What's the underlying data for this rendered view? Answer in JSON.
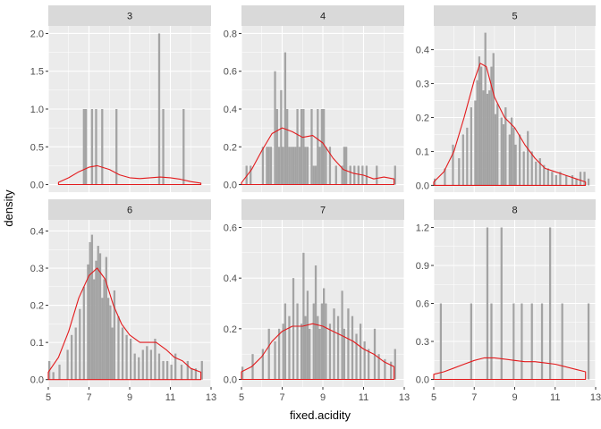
{
  "chart_data": {
    "type": "histogram-facet",
    "xlabel": "fixed.acidity",
    "ylabel": "density",
    "xlim": [
      5,
      13
    ],
    "x_ticks": [
      5,
      7,
      9,
      11,
      13
    ],
    "bar_color": "#A3A3A3",
    "density_color": "#E31A1C",
    "panel_bg": "#EBEBEB",
    "strip_bg": "#D9D9D9",
    "panels": [
      {
        "label": "3",
        "ylim": [
          -0.1,
          2.1
        ],
        "y_ticks": [
          0.0,
          0.5,
          1.0,
          1.5,
          2.0
        ],
        "y_tick_labels": [
          "0.0",
          "0.5",
          "1.0",
          "1.5",
          "2.0"
        ],
        "bars": [
          [
            6.7,
            1.0
          ],
          [
            6.8,
            1.0
          ],
          [
            7.1,
            1.0
          ],
          [
            7.3,
            1.0
          ],
          [
            7.6,
            1.0
          ],
          [
            8.3,
            1.0
          ],
          [
            10.4,
            2.0
          ],
          [
            10.6,
            1.0
          ],
          [
            11.6,
            1.0
          ]
        ],
        "density": [
          [
            5.5,
            0.03
          ],
          [
            6.0,
            0.09
          ],
          [
            6.5,
            0.17
          ],
          [
            7.0,
            0.23
          ],
          [
            7.4,
            0.25
          ],
          [
            8.0,
            0.2
          ],
          [
            8.5,
            0.13
          ],
          [
            9.0,
            0.09
          ],
          [
            9.5,
            0.08
          ],
          [
            10.0,
            0.09
          ],
          [
            10.5,
            0.1
          ],
          [
            11.0,
            0.09
          ],
          [
            11.5,
            0.07
          ],
          [
            12.0,
            0.04
          ],
          [
            12.5,
            0.02
          ]
        ]
      },
      {
        "label": "4",
        "ylim": [
          -0.04,
          0.84
        ],
        "y_ticks": [
          0.0,
          0.2,
          0.4,
          0.6,
          0.8
        ],
        "y_tick_labels": [
          "0.0",
          "0.2",
          "0.4",
          "0.6",
          "0.8"
        ],
        "bars": [
          [
            5.2,
            0.1
          ],
          [
            5.4,
            0.1
          ],
          [
            6.0,
            0.2
          ],
          [
            6.2,
            0.2
          ],
          [
            6.3,
            0.2
          ],
          [
            6.4,
            0.2
          ],
          [
            6.6,
            0.6
          ],
          [
            6.7,
            0.4
          ],
          [
            6.8,
            0.2
          ],
          [
            6.9,
            0.5
          ],
          [
            7.0,
            0.2
          ],
          [
            7.1,
            0.7
          ],
          [
            7.2,
            0.4
          ],
          [
            7.3,
            0.2
          ],
          [
            7.4,
            0.2
          ],
          [
            7.5,
            0.2
          ],
          [
            7.6,
            0.2
          ],
          [
            7.7,
            0.4
          ],
          [
            7.8,
            0.2
          ],
          [
            7.9,
            0.4
          ],
          [
            8.0,
            0.4
          ],
          [
            8.1,
            0.2
          ],
          [
            8.2,
            0.2
          ],
          [
            8.4,
            0.4
          ],
          [
            8.5,
            0.1
          ],
          [
            8.6,
            0.1
          ],
          [
            8.7,
            0.4
          ],
          [
            8.8,
            0.2
          ],
          [
            8.9,
            0.4
          ],
          [
            9.0,
            0.4
          ],
          [
            9.1,
            0.2
          ],
          [
            9.3,
            0.2
          ],
          [
            9.6,
            0.1
          ],
          [
            9.9,
            0.1
          ],
          [
            10.0,
            0.2
          ],
          [
            10.1,
            0.2
          ],
          [
            10.3,
            0.1
          ],
          [
            10.5,
            0.1
          ],
          [
            10.7,
            0.1
          ],
          [
            10.9,
            0.1
          ],
          [
            11.1,
            0.1
          ],
          [
            11.6,
            0.1
          ],
          [
            12.5,
            0.1
          ]
        ],
        "density": [
          [
            5.0,
            0.01
          ],
          [
            5.5,
            0.08
          ],
          [
            6.0,
            0.18
          ],
          [
            6.5,
            0.27
          ],
          [
            7.0,
            0.3
          ],
          [
            7.5,
            0.28
          ],
          [
            8.0,
            0.25
          ],
          [
            8.5,
            0.26
          ],
          [
            9.0,
            0.22
          ],
          [
            9.5,
            0.14
          ],
          [
            10.0,
            0.08
          ],
          [
            10.5,
            0.06
          ],
          [
            11.0,
            0.05
          ],
          [
            11.5,
            0.03
          ],
          [
            12.0,
            0.04
          ],
          [
            12.5,
            0.03
          ]
        ]
      },
      {
        "label": "5",
        "ylim": [
          -0.02,
          0.47
        ],
        "y_ticks": [
          0.0,
          0.1,
          0.2,
          0.3,
          0.4
        ],
        "y_tick_labels": [
          "0.0",
          "0.1",
          "0.2",
          "0.3",
          "0.4"
        ],
        "bars": [
          [
            5.0,
            0.02
          ],
          [
            5.5,
            0.05
          ],
          [
            5.9,
            0.12
          ],
          [
            6.2,
            0.08
          ],
          [
            6.4,
            0.15
          ],
          [
            6.6,
            0.17
          ],
          [
            6.8,
            0.23
          ],
          [
            7.0,
            0.25
          ],
          [
            7.1,
            0.31
          ],
          [
            7.2,
            0.38
          ],
          [
            7.3,
            0.35
          ],
          [
            7.4,
            0.28
          ],
          [
            7.5,
            0.45
          ],
          [
            7.6,
            0.27
          ],
          [
            7.7,
            0.28
          ],
          [
            7.8,
            0.35
          ],
          [
            7.9,
            0.39
          ],
          [
            8.0,
            0.21
          ],
          [
            8.1,
            0.24
          ],
          [
            8.3,
            0.2
          ],
          [
            8.4,
            0.18
          ],
          [
            8.5,
            0.23
          ],
          [
            8.7,
            0.15
          ],
          [
            8.8,
            0.2
          ],
          [
            8.9,
            0.17
          ],
          [
            9.0,
            0.12
          ],
          [
            9.2,
            0.15
          ],
          [
            9.4,
            0.1
          ],
          [
            9.6,
            0.16
          ],
          [
            9.8,
            0.1
          ],
          [
            10.0,
            0.07
          ],
          [
            10.2,
            0.08
          ],
          [
            10.4,
            0.06
          ],
          [
            10.6,
            0.05
          ],
          [
            10.8,
            0.04
          ],
          [
            11.0,
            0.03
          ],
          [
            11.2,
            0.04
          ],
          [
            11.5,
            0.03
          ],
          [
            11.8,
            0.03
          ],
          [
            12.0,
            0.02
          ],
          [
            12.2,
            0.04
          ],
          [
            12.4,
            0.04
          ],
          [
            12.6,
            0.02
          ]
        ],
        "density": [
          [
            5.0,
            0.01
          ],
          [
            5.5,
            0.04
          ],
          [
            6.0,
            0.1
          ],
          [
            6.5,
            0.2
          ],
          [
            7.0,
            0.31
          ],
          [
            7.3,
            0.36
          ],
          [
            7.6,
            0.35
          ],
          [
            8.0,
            0.26
          ],
          [
            8.5,
            0.2
          ],
          [
            9.0,
            0.17
          ],
          [
            9.5,
            0.12
          ],
          [
            10.0,
            0.08
          ],
          [
            10.5,
            0.05
          ],
          [
            11.0,
            0.04
          ],
          [
            11.5,
            0.03
          ],
          [
            12.0,
            0.02
          ],
          [
            12.5,
            0.01
          ]
        ]
      },
      {
        "label": "6",
        "ylim": [
          -0.02,
          0.43
        ],
        "y_ticks": [
          0.0,
          0.1,
          0.2,
          0.3,
          0.4
        ],
        "y_tick_labels": [
          "0.0",
          "0.1",
          "0.2",
          "0.3",
          "0.4"
        ],
        "bars": [
          [
            5.0,
            0.05
          ],
          [
            5.2,
            0.02
          ],
          [
            5.5,
            0.04
          ],
          [
            5.9,
            0.08
          ],
          [
            6.1,
            0.12
          ],
          [
            6.3,
            0.14
          ],
          [
            6.5,
            0.19
          ],
          [
            6.7,
            0.25
          ],
          [
            6.9,
            0.31
          ],
          [
            7.0,
            0.37
          ],
          [
            7.1,
            0.39
          ],
          [
            7.2,
            0.27
          ],
          [
            7.3,
            0.32
          ],
          [
            7.4,
            0.36
          ],
          [
            7.5,
            0.34
          ],
          [
            7.6,
            0.22
          ],
          [
            7.7,
            0.27
          ],
          [
            7.8,
            0.33
          ],
          [
            7.9,
            0.22
          ],
          [
            8.0,
            0.2
          ],
          [
            8.1,
            0.14
          ],
          [
            8.2,
            0.24
          ],
          [
            8.4,
            0.17
          ],
          [
            8.6,
            0.14
          ],
          [
            8.8,
            0.12
          ],
          [
            9.0,
            0.11
          ],
          [
            9.2,
            0.07
          ],
          [
            9.4,
            0.06
          ],
          [
            9.6,
            0.08
          ],
          [
            9.8,
            0.09
          ],
          [
            10.0,
            0.08
          ],
          [
            10.2,
            0.11
          ],
          [
            10.4,
            0.07
          ],
          [
            10.6,
            0.05
          ],
          [
            10.8,
            0.05
          ],
          [
            11.0,
            0.04
          ],
          [
            11.2,
            0.07
          ],
          [
            11.5,
            0.04
          ],
          [
            11.8,
            0.05
          ],
          [
            12.0,
            0.03
          ],
          [
            12.2,
            0.03
          ],
          [
            12.5,
            0.05
          ]
        ],
        "density": [
          [
            5.0,
            0.02
          ],
          [
            5.5,
            0.06
          ],
          [
            6.0,
            0.13
          ],
          [
            6.5,
            0.22
          ],
          [
            7.0,
            0.28
          ],
          [
            7.4,
            0.3
          ],
          [
            7.8,
            0.27
          ],
          [
            8.2,
            0.2
          ],
          [
            8.6,
            0.15
          ],
          [
            9.0,
            0.12
          ],
          [
            9.5,
            0.1
          ],
          [
            10.0,
            0.1
          ],
          [
            10.3,
            0.1
          ],
          [
            10.8,
            0.08
          ],
          [
            11.2,
            0.06
          ],
          [
            11.6,
            0.05
          ],
          [
            12.0,
            0.03
          ],
          [
            12.5,
            0.02
          ]
        ]
      },
      {
        "label": "7",
        "ylim": [
          -0.03,
          0.63
        ],
        "y_ticks": [
          0.0,
          0.2,
          0.4,
          0.6
        ],
        "y_tick_labels": [
          "0.0",
          "0.2",
          "0.4",
          "0.6"
        ],
        "bars": [
          [
            5.0,
            0.05
          ],
          [
            5.5,
            0.1
          ],
          [
            6.0,
            0.12
          ],
          [
            6.3,
            0.2
          ],
          [
            6.6,
            0.15
          ],
          [
            6.8,
            0.2
          ],
          [
            7.0,
            0.22
          ],
          [
            7.1,
            0.3
          ],
          [
            7.3,
            0.25
          ],
          [
            7.5,
            0.4
          ],
          [
            7.7,
            0.3
          ],
          [
            7.9,
            0.22
          ],
          [
            8.0,
            0.5
          ],
          [
            8.1,
            0.25
          ],
          [
            8.2,
            0.35
          ],
          [
            8.3,
            0.2
          ],
          [
            8.5,
            0.3
          ],
          [
            8.6,
            0.45
          ],
          [
            8.7,
            0.25
          ],
          [
            8.8,
            0.2
          ],
          [
            8.9,
            0.3
          ],
          [
            9.0,
            0.36
          ],
          [
            9.1,
            0.3
          ],
          [
            9.3,
            0.22
          ],
          [
            9.5,
            0.28
          ],
          [
            9.7,
            0.25
          ],
          [
            9.9,
            0.35
          ],
          [
            10.0,
            0.2
          ],
          [
            10.2,
            0.28
          ],
          [
            10.4,
            0.25
          ],
          [
            10.6,
            0.18
          ],
          [
            10.8,
            0.22
          ],
          [
            11.0,
            0.15
          ],
          [
            11.2,
            0.12
          ],
          [
            11.5,
            0.2
          ],
          [
            11.7,
            0.1
          ],
          [
            12.0,
            0.08
          ],
          [
            12.3,
            0.07
          ],
          [
            12.5,
            0.12
          ]
        ],
        "density": [
          [
            5.0,
            0.03
          ],
          [
            5.5,
            0.05
          ],
          [
            6.0,
            0.09
          ],
          [
            6.5,
            0.15
          ],
          [
            7.0,
            0.19
          ],
          [
            7.5,
            0.21
          ],
          [
            8.0,
            0.21
          ],
          [
            8.5,
            0.22
          ],
          [
            9.0,
            0.21
          ],
          [
            9.5,
            0.19
          ],
          [
            10.0,
            0.17
          ],
          [
            10.5,
            0.15
          ],
          [
            11.0,
            0.12
          ],
          [
            11.5,
            0.1
          ],
          [
            12.0,
            0.07
          ],
          [
            12.5,
            0.05
          ]
        ]
      },
      {
        "label": "8",
        "ylim": [
          -0.06,
          1.26
        ],
        "y_ticks": [
          0.0,
          0.3,
          0.6,
          0.9,
          1.2
        ],
        "y_tick_labels": [
          "0.0",
          "0.3",
          "0.6",
          "0.9",
          "1.2"
        ],
        "bars": [
          [
            5.3,
            0.6
          ],
          [
            6.8,
            0.6
          ],
          [
            7.6,
            1.2
          ],
          [
            7.8,
            0.6
          ],
          [
            8.3,
            1.2
          ],
          [
            8.9,
            0.6
          ],
          [
            9.3,
            0.6
          ],
          [
            9.8,
            0.6
          ],
          [
            10.3,
            0.6
          ],
          [
            10.7,
            1.2
          ],
          [
            11.3,
            0.6
          ],
          [
            12.6,
            0.6
          ]
        ],
        "density": [
          [
            5.0,
            0.04
          ],
          [
            5.5,
            0.06
          ],
          [
            6.0,
            0.09
          ],
          [
            6.5,
            0.12
          ],
          [
            7.0,
            0.15
          ],
          [
            7.5,
            0.17
          ],
          [
            8.0,
            0.17
          ],
          [
            8.5,
            0.16
          ],
          [
            9.0,
            0.15
          ],
          [
            9.5,
            0.14
          ],
          [
            10.0,
            0.14
          ],
          [
            10.5,
            0.13
          ],
          [
            11.0,
            0.12
          ],
          [
            11.5,
            0.1
          ],
          [
            12.0,
            0.08
          ],
          [
            12.5,
            0.06
          ]
        ]
      }
    ]
  }
}
